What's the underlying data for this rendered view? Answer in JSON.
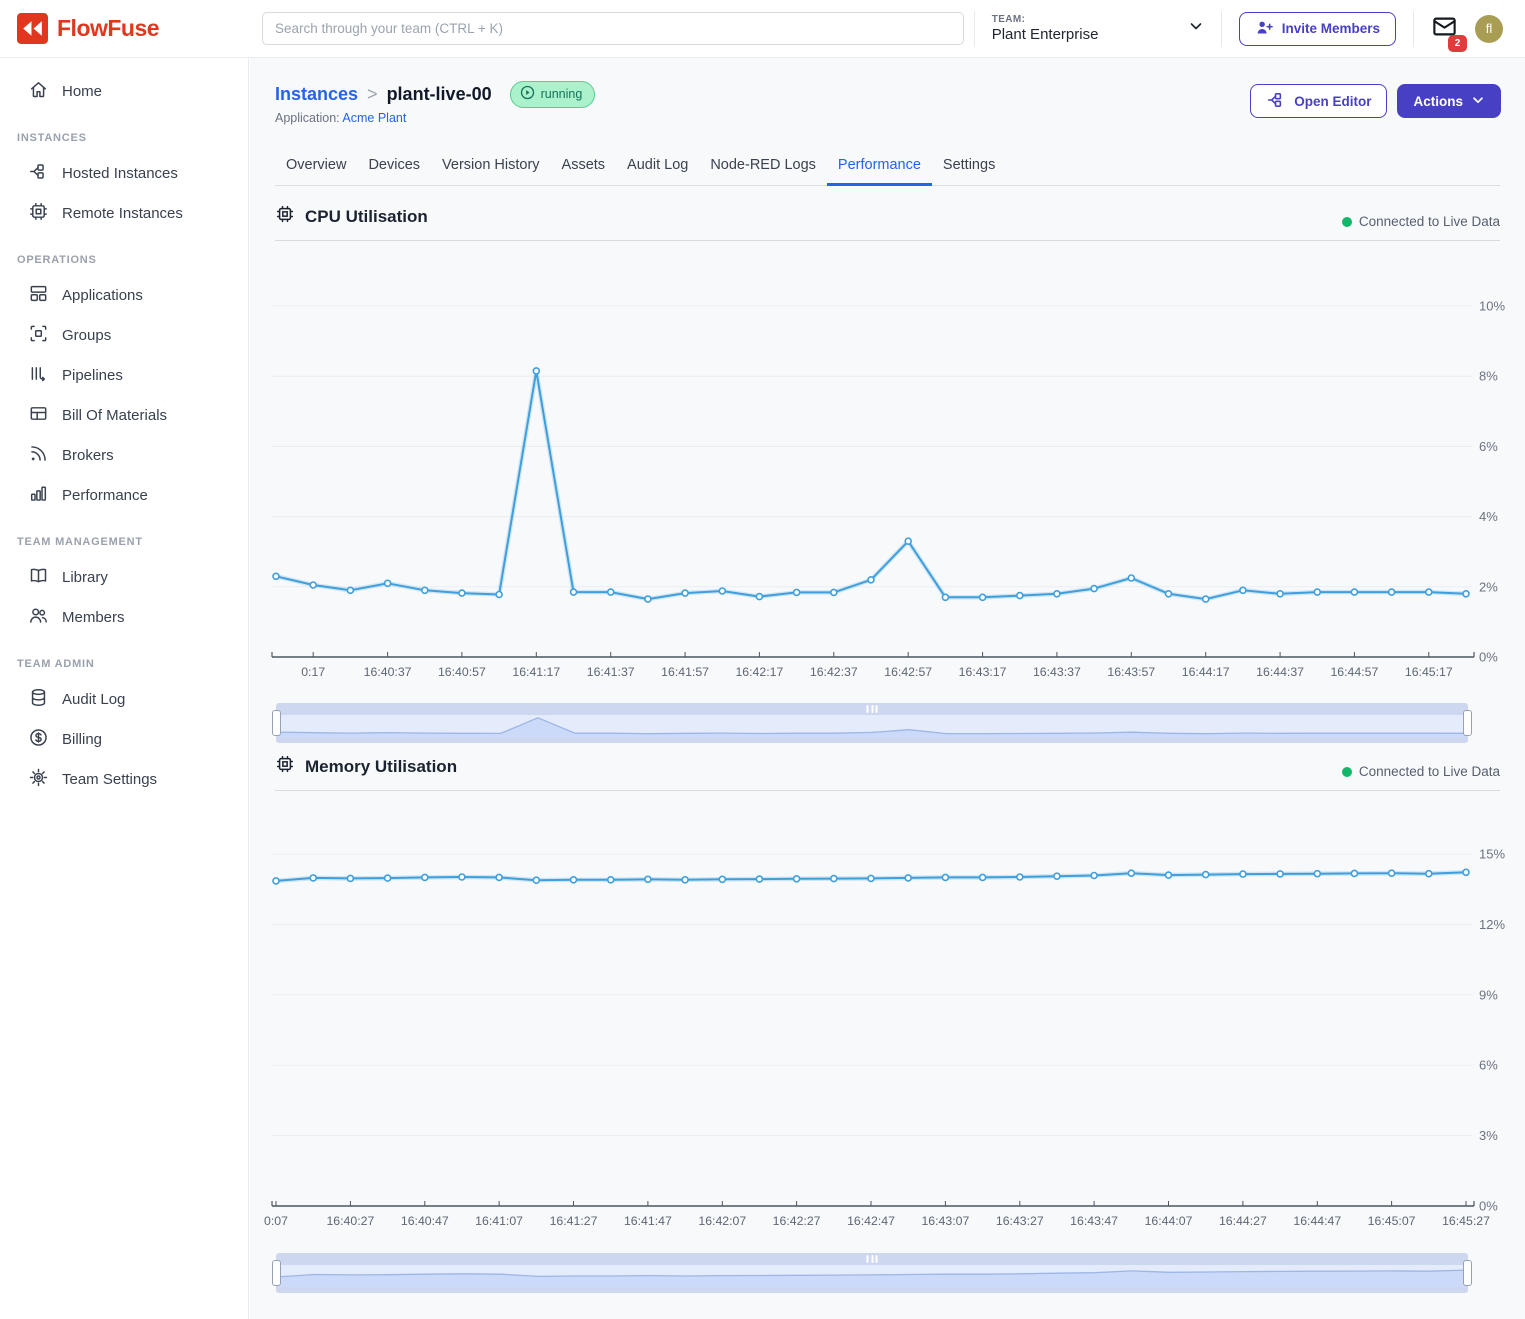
{
  "header": {
    "brand": "FlowFuse",
    "search_placeholder": "Search through your team (CTRL + K)",
    "team_label": "TEAM:",
    "team_name": "Plant Enterprise",
    "invite_button": "Invite Members",
    "notification_count": "2",
    "avatar_initials": "fl"
  },
  "sidebar": {
    "sections": [
      {
        "heading": "",
        "items": [
          {
            "label": "Home",
            "icon": "home-icon"
          }
        ]
      },
      {
        "heading": "INSTANCES",
        "items": [
          {
            "label": "Hosted Instances",
            "icon": "hosted-instances-icon"
          },
          {
            "label": "Remote Instances",
            "icon": "remote-instances-icon"
          }
        ]
      },
      {
        "heading": "OPERATIONS",
        "items": [
          {
            "label": "Applications",
            "icon": "applications-icon"
          },
          {
            "label": "Groups",
            "icon": "groups-icon"
          },
          {
            "label": "Pipelines",
            "icon": "pipelines-icon"
          },
          {
            "label": "Bill Of Materials",
            "icon": "bill-of-materials-icon"
          },
          {
            "label": "Brokers",
            "icon": "brokers-icon"
          },
          {
            "label": "Performance",
            "icon": "performance-icon"
          }
        ]
      },
      {
        "heading": "TEAM MANAGEMENT",
        "items": [
          {
            "label": "Library",
            "icon": "library-icon"
          },
          {
            "label": "Members",
            "icon": "members-icon"
          }
        ]
      },
      {
        "heading": "TEAM ADMIN",
        "items": [
          {
            "label": "Audit Log",
            "icon": "audit-log-icon"
          },
          {
            "label": "Billing",
            "icon": "billing-icon"
          },
          {
            "label": "Team Settings",
            "icon": "team-settings-icon"
          }
        ]
      }
    ]
  },
  "page": {
    "breadcrumb_root": "Instances",
    "breadcrumb_sep": ">",
    "instance_name": "plant-live-00",
    "status_badge": "running",
    "application_label": "Application:",
    "application_name": "Acme Plant",
    "open_editor_button": "Open Editor",
    "actions_button": "Actions",
    "tabs": [
      "Overview",
      "Devices",
      "Version History",
      "Assets",
      "Audit Log",
      "Node-RED Logs",
      "Performance",
      "Settings"
    ],
    "active_tab": "Performance"
  },
  "colors": {
    "brand_red": "#E0371F",
    "accent_indigo": "#4840C4",
    "link_blue": "#2563EB",
    "chart_line": "#3F9FDC",
    "live_green": "#12B76A"
  },
  "chart_data": [
    {
      "type": "line",
      "title": "CPU Utilisation",
      "status_label": "Connected to Live Data",
      "unit": "%",
      "ylim": [
        0,
        11.5
      ],
      "grid": true,
      "yticks": [
        {
          "v": 10,
          "label": "10%"
        },
        {
          "v": 8,
          "label": "8%"
        },
        {
          "v": 6,
          "label": "6%"
        },
        {
          "v": 4,
          "label": "4%"
        },
        {
          "v": 2,
          "label": "2%"
        },
        {
          "v": 0,
          "label": "0%"
        }
      ],
      "x_tick_labels": [
        "0:17",
        "16:40:37",
        "16:40:57",
        "16:41:17",
        "16:41:37",
        "16:41:57",
        "16:42:17",
        "16:42:37",
        "16:42:57",
        "16:43:17",
        "16:43:37",
        "16:43:57",
        "16:44:17",
        "16:44:37",
        "16:44:57",
        "16:45:17"
      ],
      "values": [
        2.3,
        2.05,
        1.9,
        2.1,
        1.9,
        1.82,
        1.78,
        8.15,
        1.85,
        1.85,
        1.65,
        1.82,
        1.88,
        1.72,
        1.84,
        1.84,
        2.2,
        3.3,
        1.7,
        1.7,
        1.75,
        1.8,
        1.95,
        2.25,
        1.8,
        1.65,
        1.9,
        1.8,
        1.85,
        1.85,
        1.85,
        1.85,
        1.8
      ]
    },
    {
      "type": "line",
      "title": "Memory Utilisation",
      "status_label": "Connected to Live Data",
      "unit": "%",
      "ylim": [
        0,
        17.7
      ],
      "grid": true,
      "yticks": [
        {
          "v": 15,
          "label": "15%"
        },
        {
          "v": 12,
          "label": "12%"
        },
        {
          "v": 9,
          "label": "9%"
        },
        {
          "v": 6,
          "label": "6%"
        },
        {
          "v": 3,
          "label": "3%"
        },
        {
          "v": 0,
          "label": "0%"
        }
      ],
      "x_tick_labels": [
        "0:07",
        "16:40:27",
        "16:40:47",
        "16:41:07",
        "16:41:27",
        "16:41:47",
        "16:42:07",
        "16:42:27",
        "16:42:47",
        "16:43:07",
        "16:43:27",
        "16:43:47",
        "16:44:07",
        "16:44:27",
        "16:44:47",
        "16:45:07",
        "16:45:27"
      ],
      "values": [
        13.85,
        13.98,
        13.96,
        13.97,
        14.0,
        14.02,
        14.0,
        13.88,
        13.9,
        13.9,
        13.92,
        13.9,
        13.92,
        13.93,
        13.94,
        13.95,
        13.96,
        13.98,
        14.0,
        14.0,
        14.02,
        14.05,
        14.08,
        14.18,
        14.1,
        14.12,
        14.14,
        14.15,
        14.16,
        14.17,
        14.18,
        14.16,
        14.22
      ]
    }
  ]
}
